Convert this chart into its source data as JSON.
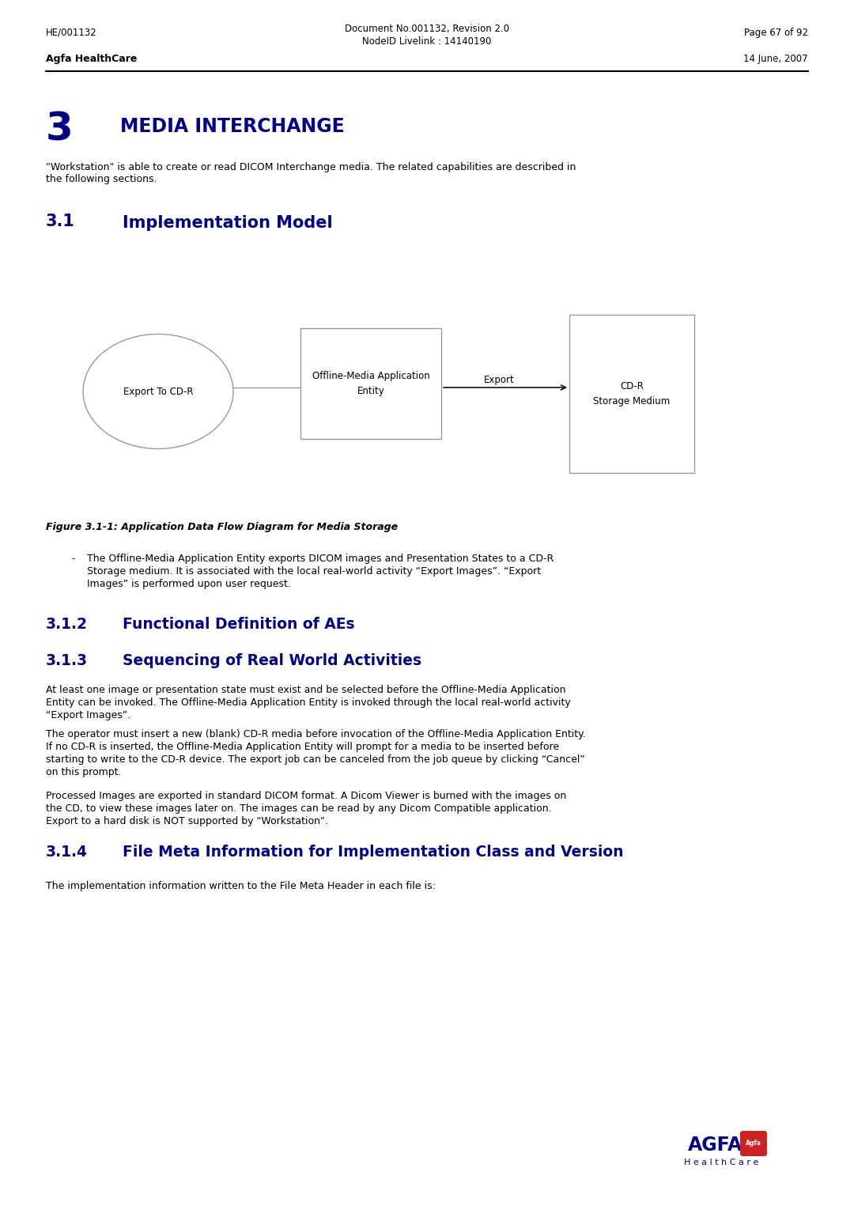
{
  "header_left": "HE/001132",
  "header_c1": "Document No.001132, Revision 2.0",
  "header_c2": "NodeID Livelink : 14140190",
  "header_right": "Page 67 of 92",
  "agfa_left": "Agfa HealthCare",
  "agfa_right": "14 June, 2007",
  "s3_num": "3",
  "s3_title": "MEDIA INTERCHANGE",
  "s3_b1": "\"Workstation\" is able to create or read DICOM Interchange media. The related capabilities are described in",
  "s3_b2": "the following sections.",
  "s31_num": "3.1",
  "s31_title": "Implementation Model",
  "diag_ell": "Export To CD-R",
  "diag_box": "Offline-Media Application\nEntity",
  "diag_arr": "Export",
  "diag_cdr": "CD-R\nStorage Medium",
  "fig_cap": "Figure 3.1-1: Application Data Flow Diagram for Media Storage",
  "bul_dash": "-",
  "bul_1": "The Offline-Media Application Entity exports DICOM images and Presentation States to a CD-R",
  "bul_2": "Storage medium. It is associated with the local real-world activity “Export Images”. “Export",
  "bul_3": "Images” is performed upon user request.",
  "s312_num": "3.1.2",
  "s312_title": "Functional Definition of AEs",
  "s313_num": "3.1.3",
  "s313_title": "Sequencing of Real World Activities",
  "p1_1": "At least one image or presentation state must exist and be selected before the Offline-Media Application",
  "p1_2": "Entity can be invoked. The Offline-Media Application Entity is invoked through the local real-world activity",
  "p1_3": "“Export Images”.",
  "p2_1": "The operator must insert a new (blank) CD-R media before invocation of the Offline-Media Application Entity.",
  "p2_2": "If no CD-R is inserted, the Offline-Media Application Entity will prompt for a media to be inserted before",
  "p2_3": "starting to write to the CD-R device. The export job can be canceled from the job queue by clicking “Cancel”",
  "p2_4": "on this prompt.",
  "p3_1": "Processed Images are exported in standard DICOM format. A Dicom Viewer is burned with the images on",
  "p3_2": "the CD, to view these images later on. The images can be read by any Dicom Compatible application.",
  "p3_3": "Export to a hard disk is NOT supported by \"Workstation\".",
  "s314_num": "3.1.4",
  "s314_title": "File Meta Information for Implementation Class and Version",
  "p4_1": "The implementation information written to the File Meta Header in each file is:",
  "DB": "#00008B",
  "BK": "#000000",
  "GR": "#aaaaaa",
  "BG": "#ffffff",
  "RED": "#cc2222"
}
